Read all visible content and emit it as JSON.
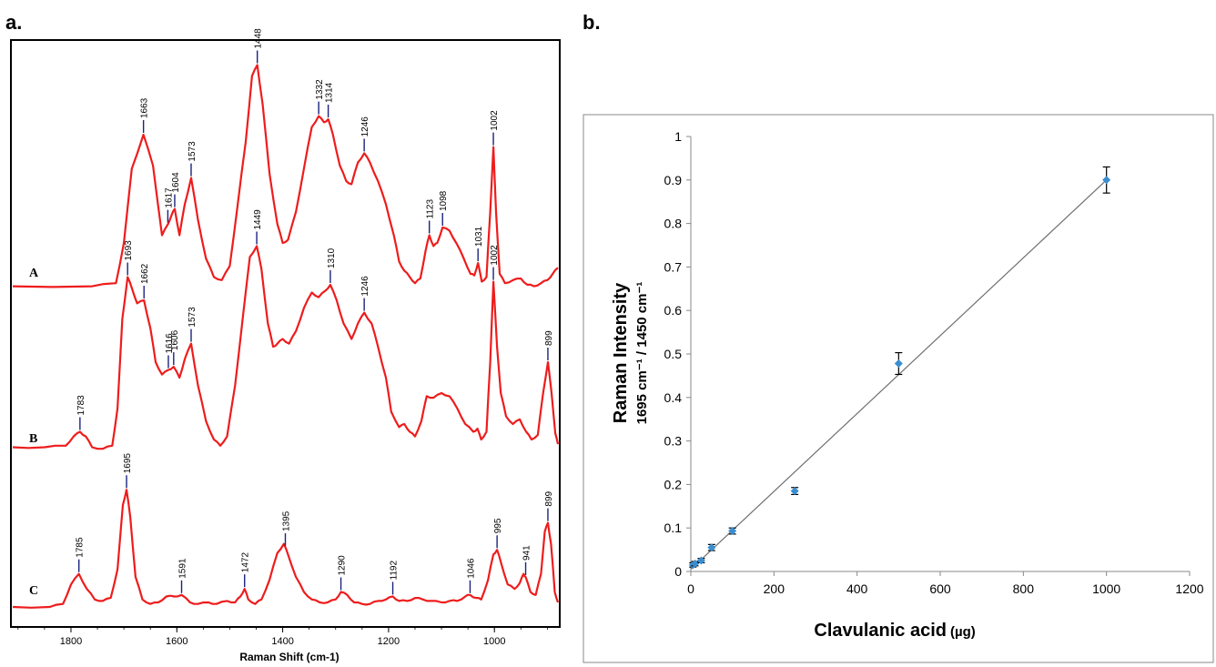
{
  "panel_labels": {
    "a": "a.",
    "b": "b."
  },
  "chart_data": [
    {
      "type": "line",
      "panel": "a.",
      "xlabel": "Raman Shift (cm-1)",
      "xlim": [
        1910,
        880
      ],
      "x_reversed": true,
      "x_ticks": [
        "1800",
        "1600",
        "1400",
        "1200",
        "1000"
      ],
      "x_tick_values": [
        1800,
        1600,
        1400,
        1200,
        1000
      ],
      "color": "#ee1c1c",
      "series": [
        {
          "name": "A",
          "points": [
            [
              1910,
              0.02
            ],
            [
              1760,
              0.02
            ],
            [
              1715,
              0.04
            ],
            [
              1700,
              0.3
            ],
            [
              1685,
              0.78
            ],
            [
              1663,
              1.0
            ],
            [
              1645,
              0.8
            ],
            [
              1628,
              0.35
            ],
            [
              1617,
              0.42
            ],
            [
              1610,
              0.48
            ],
            [
              1604,
              0.52
            ],
            [
              1595,
              0.35
            ],
            [
              1585,
              0.55
            ],
            [
              1573,
              0.72
            ],
            [
              1560,
              0.45
            ],
            [
              1545,
              0.2
            ],
            [
              1530,
              0.08
            ],
            [
              1515,
              0.06
            ],
            [
              1500,
              0.15
            ],
            [
              1485,
              0.55
            ],
            [
              1470,
              0.95
            ],
            [
              1458,
              1.38
            ],
            [
              1448,
              1.45
            ],
            [
              1438,
              1.2
            ],
            [
              1425,
              0.75
            ],
            [
              1410,
              0.42
            ],
            [
              1400,
              0.3
            ],
            [
              1390,
              0.32
            ],
            [
              1375,
              0.5
            ],
            [
              1360,
              0.78
            ],
            [
              1345,
              1.05
            ],
            [
              1332,
              1.12
            ],
            [
              1322,
              1.08
            ],
            [
              1314,
              1.1
            ],
            [
              1305,
              1.0
            ],
            [
              1292,
              0.8
            ],
            [
              1280,
              0.7
            ],
            [
              1270,
              0.68
            ],
            [
              1258,
              0.82
            ],
            [
              1246,
              0.88
            ],
            [
              1235,
              0.82
            ],
            [
              1220,
              0.7
            ],
            [
              1205,
              0.55
            ],
            [
              1190,
              0.35
            ],
            [
              1180,
              0.18
            ],
            [
              1170,
              0.12
            ],
            [
              1160,
              0.08
            ],
            [
              1150,
              0.04
            ],
            [
              1140,
              0.07
            ],
            [
              1130,
              0.25
            ],
            [
              1123,
              0.35
            ],
            [
              1115,
              0.28
            ],
            [
              1108,
              0.3
            ],
            [
              1098,
              0.4
            ],
            [
              1085,
              0.38
            ],
            [
              1072,
              0.3
            ],
            [
              1058,
              0.2
            ],
            [
              1045,
              0.1
            ],
            [
              1038,
              0.09
            ],
            [
              1031,
              0.17
            ],
            [
              1024,
              0.05
            ],
            [
              1015,
              0.08
            ],
            [
              1008,
              0.5
            ],
            [
              1002,
              0.92
            ],
            [
              997,
              0.5
            ],
            [
              990,
              0.1
            ],
            [
              980,
              0.04
            ],
            [
              965,
              0.06
            ],
            [
              950,
              0.07
            ],
            [
              938,
              0.03
            ],
            [
              925,
              0.02
            ],
            [
              912,
              0.04
            ],
            [
              900,
              0.06
            ],
            [
              890,
              0.1
            ],
            [
              880,
              0.14
            ]
          ]
        },
        {
          "name": "B",
          "points": [
            [
              1910,
              0.05
            ],
            [
              1850,
              0.05
            ],
            [
              1810,
              0.06
            ],
            [
              1795,
              0.12
            ],
            [
              1783,
              0.15
            ],
            [
              1772,
              0.12
            ],
            [
              1760,
              0.05
            ],
            [
              1740,
              0.04
            ],
            [
              1722,
              0.06
            ],
            [
              1712,
              0.3
            ],
            [
              1703,
              0.88
            ],
            [
              1693,
              1.15
            ],
            [
              1685,
              1.08
            ],
            [
              1675,
              0.98
            ],
            [
              1662,
              1.0
            ],
            [
              1650,
              0.82
            ],
            [
              1640,
              0.6
            ],
            [
              1628,
              0.52
            ],
            [
              1616,
              0.55
            ],
            [
              1606,
              0.57
            ],
            [
              1595,
              0.5
            ],
            [
              1585,
              0.62
            ],
            [
              1573,
              0.72
            ],
            [
              1560,
              0.45
            ],
            [
              1545,
              0.22
            ],
            [
              1530,
              0.1
            ],
            [
              1518,
              0.06
            ],
            [
              1505,
              0.12
            ],
            [
              1490,
              0.45
            ],
            [
              1475,
              0.9
            ],
            [
              1462,
              1.28
            ],
            [
              1449,
              1.35
            ],
            [
              1440,
              1.2
            ],
            [
              1428,
              0.85
            ],
            [
              1418,
              0.7
            ],
            [
              1410,
              0.72
            ],
            [
              1400,
              0.75
            ],
            [
              1388,
              0.72
            ],
            [
              1375,
              0.8
            ],
            [
              1360,
              0.95
            ],
            [
              1345,
              1.05
            ],
            [
              1332,
              1.02
            ],
            [
              1320,
              1.06
            ],
            [
              1310,
              1.1
            ],
            [
              1298,
              1.0
            ],
            [
              1285,
              0.85
            ],
            [
              1270,
              0.75
            ],
            [
              1258,
              0.85
            ],
            [
              1246,
              0.92
            ],
            [
              1232,
              0.85
            ],
            [
              1220,
              0.7
            ],
            [
              1205,
              0.5
            ],
            [
              1195,
              0.28
            ],
            [
              1180,
              0.18
            ],
            [
              1170,
              0.2
            ],
            [
              1160,
              0.15
            ],
            [
              1150,
              0.12
            ],
            [
              1138,
              0.22
            ],
            [
              1128,
              0.38
            ],
            [
              1115,
              0.37
            ],
            [
              1100,
              0.4
            ],
            [
              1085,
              0.38
            ],
            [
              1070,
              0.3
            ],
            [
              1055,
              0.2
            ],
            [
              1040,
              0.15
            ],
            [
              1032,
              0.17
            ],
            [
              1025,
              0.1
            ],
            [
              1015,
              0.15
            ],
            [
              1008,
              0.6
            ],
            [
              1002,
              1.12
            ],
            [
              995,
              0.7
            ],
            [
              988,
              0.4
            ],
            [
              978,
              0.25
            ],
            [
              965,
              0.2
            ],
            [
              952,
              0.23
            ],
            [
              940,
              0.15
            ],
            [
              930,
              0.1
            ],
            [
              918,
              0.13
            ],
            [
              908,
              0.4
            ],
            [
              899,
              0.6
            ],
            [
              892,
              0.4
            ],
            [
              885,
              0.14
            ],
            [
              880,
              0.07
            ]
          ]
        },
        {
          "name": "C",
          "points": [
            [
              1910,
              0.0
            ],
            [
              1840,
              0.0
            ],
            [
              1815,
              0.02
            ],
            [
              1800,
              0.15
            ],
            [
              1785,
              0.22
            ],
            [
              1770,
              0.12
            ],
            [
              1755,
              0.05
            ],
            [
              1740,
              0.04
            ],
            [
              1725,
              0.06
            ],
            [
              1712,
              0.25
            ],
            [
              1702,
              0.68
            ],
            [
              1695,
              0.78
            ],
            [
              1688,
              0.6
            ],
            [
              1678,
              0.2
            ],
            [
              1665,
              0.05
            ],
            [
              1650,
              0.02
            ],
            [
              1635,
              0.03
            ],
            [
              1620,
              0.07
            ],
            [
              1605,
              0.07
            ],
            [
              1591,
              0.08
            ],
            [
              1575,
              0.03
            ],
            [
              1560,
              0.02
            ],
            [
              1540,
              0.03
            ],
            [
              1525,
              0.02
            ],
            [
              1505,
              0.04
            ],
            [
              1490,
              0.03
            ],
            [
              1480,
              0.07
            ],
            [
              1472,
              0.12
            ],
            [
              1465,
              0.05
            ],
            [
              1452,
              0.02
            ],
            [
              1440,
              0.05
            ],
            [
              1425,
              0.18
            ],
            [
              1410,
              0.36
            ],
            [
              1398,
              0.42
            ],
            [
              1390,
              0.35
            ],
            [
              1375,
              0.2
            ],
            [
              1360,
              0.1
            ],
            [
              1345,
              0.05
            ],
            [
              1330,
              0.03
            ],
            [
              1315,
              0.03
            ],
            [
              1300,
              0.05
            ],
            [
              1290,
              0.1
            ],
            [
              1278,
              0.08
            ],
            [
              1265,
              0.03
            ],
            [
              1250,
              0.02
            ],
            [
              1235,
              0.02
            ],
            [
              1220,
              0.04
            ],
            [
              1205,
              0.05
            ],
            [
              1192,
              0.07
            ],
            [
              1180,
              0.04
            ],
            [
              1165,
              0.04
            ],
            [
              1150,
              0.06
            ],
            [
              1135,
              0.05
            ],
            [
              1120,
              0.04
            ],
            [
              1100,
              0.03
            ],
            [
              1085,
              0.04
            ],
            [
              1070,
              0.04
            ],
            [
              1055,
              0.07
            ],
            [
              1046,
              0.08
            ],
            [
              1035,
              0.06
            ],
            [
              1025,
              0.05
            ],
            [
              1012,
              0.18
            ],
            [
              1002,
              0.35
            ],
            [
              995,
              0.38
            ],
            [
              988,
              0.3
            ],
            [
              975,
              0.15
            ],
            [
              962,
              0.12
            ],
            [
              952,
              0.16
            ],
            [
              945,
              0.22
            ],
            [
              941,
              0.2
            ],
            [
              932,
              0.1
            ],
            [
              922,
              0.08
            ],
            [
              912,
              0.22
            ],
            [
              905,
              0.5
            ],
            [
              899,
              0.56
            ],
            [
              893,
              0.42
            ],
            [
              886,
              0.1
            ],
            [
              880,
              0.03
            ]
          ]
        }
      ],
      "peaks": [
        {
          "series": "A",
          "values": [
            "1663",
            "1617",
            "1604",
            "1573",
            "1448",
            "1332",
            "1314",
            "1246",
            "1123",
            "1098",
            "1031",
            "1002"
          ]
        },
        {
          "series": "B",
          "values": [
            "1783",
            "1693",
            "1662",
            "1616",
            "1606",
            "1573",
            "1449",
            "1310",
            "1246",
            "1002",
            "899"
          ]
        },
        {
          "series": "C",
          "values": [
            "1785",
            "1695",
            "1591",
            "1472",
            "1395",
            "1290",
            "1192",
            "1046",
            "995",
            "941",
            "899"
          ]
        }
      ]
    },
    {
      "type": "scatter",
      "panel": "b.",
      "xlabel": "Clavulanic acid",
      "xlabel_unit": "(µg)",
      "ylabel_line1": "Raman Intensity",
      "ylabel_line2": "1695 cm⁻¹ / 1450 cm⁻¹",
      "xlim": [
        0,
        1200
      ],
      "ylim": [
        0,
        1
      ],
      "x_ticks": [
        "0",
        "200",
        "400",
        "600",
        "800",
        "1000",
        "1200"
      ],
      "x_tick_values": [
        0,
        200,
        400,
        600,
        800,
        1000,
        1200
      ],
      "y_ticks": [
        "0",
        "0.1",
        "0.2",
        "0.3",
        "0.4",
        "0.5",
        "0.6",
        "0.7",
        "0.8",
        "0.9",
        "1"
      ],
      "y_tick_values": [
        0,
        0.1,
        0.2,
        0.3,
        0.4,
        0.5,
        0.6,
        0.7,
        0.8,
        0.9,
        1
      ],
      "point_color": "#3a8ed0",
      "points": [
        {
          "x": 5,
          "y": 0.015,
          "err": 0.005
        },
        {
          "x": 10,
          "y": 0.018,
          "err": 0.005
        },
        {
          "x": 25,
          "y": 0.025,
          "err": 0.005
        },
        {
          "x": 50,
          "y": 0.055,
          "err": 0.007
        },
        {
          "x": 100,
          "y": 0.093,
          "err": 0.007
        },
        {
          "x": 250,
          "y": 0.185,
          "err": 0.008
        },
        {
          "x": 500,
          "y": 0.478,
          "err": 0.025
        },
        {
          "x": 1000,
          "y": 0.9,
          "err": 0.03
        }
      ],
      "fit_line": {
        "x": [
          0,
          1000
        ],
        "y": [
          0.005,
          0.9
        ]
      }
    }
  ]
}
